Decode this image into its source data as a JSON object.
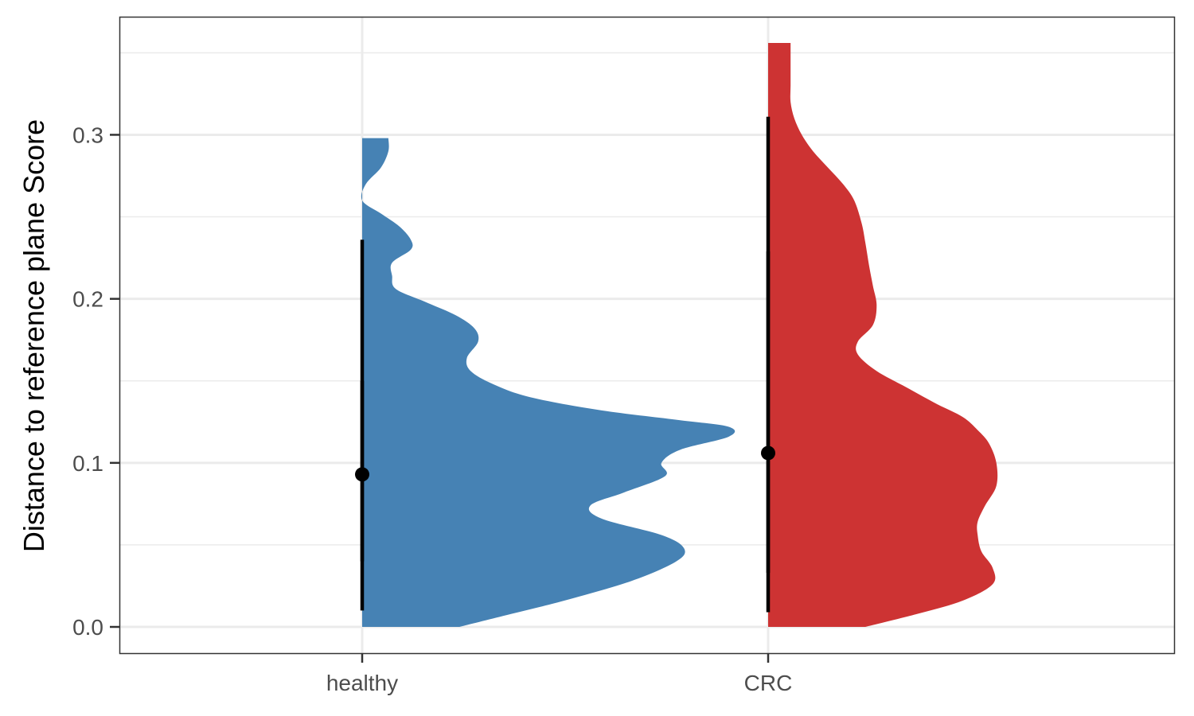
{
  "chart_data": {
    "type": "violin",
    "variant": "half-violin with point-range",
    "title": "",
    "xlabel": "",
    "ylabel": "Distance to reference plane Score",
    "ylim": [
      -0.016,
      0.372
    ],
    "yticks": [
      0.0,
      0.1,
      0.2,
      0.3
    ],
    "ytick_labels": [
      "0.0",
      "0.1",
      "0.2",
      "0.3"
    ],
    "grid": true,
    "legend": "none",
    "categories": [
      "healthy",
      "CRC"
    ],
    "series": [
      {
        "category": "healthy",
        "color": "#4682B4",
        "point": 0.093,
        "interval_outer": [
          0.01,
          0.236
        ],
        "interval_inner": [
          0.04,
          0.15
        ],
        "density": {
          "y": [
            0.0,
            0.008,
            0.016,
            0.028,
            0.04,
            0.048,
            0.056,
            0.066,
            0.074,
            0.082,
            0.092,
            0.1,
            0.108,
            0.116,
            0.122,
            0.126,
            0.132,
            0.14,
            0.148,
            0.156,
            0.164,
            0.174,
            0.182,
            0.19,
            0.198,
            0.206,
            0.214,
            0.222,
            0.23,
            0.236,
            0.244,
            0.252,
            0.26,
            0.27,
            0.28,
            0.29,
            0.298
          ],
          "width": [
            0.26,
            0.4,
            0.54,
            0.72,
            0.84,
            0.86,
            0.8,
            0.64,
            0.61,
            0.7,
            0.81,
            0.8,
            0.85,
            0.98,
            0.98,
            0.85,
            0.64,
            0.45,
            0.35,
            0.29,
            0.28,
            0.31,
            0.3,
            0.25,
            0.17,
            0.09,
            0.08,
            0.08,
            0.13,
            0.13,
            0.1,
            0.05,
            0.0,
            0.01,
            0.05,
            0.07,
            0.07
          ]
        }
      },
      {
        "category": "CRC",
        "color": "#CD3333",
        "point": 0.106,
        "interval_outer": [
          0.009,
          0.311
        ],
        "interval_inner": [
          0.033,
          0.229
        ],
        "density": {
          "y": [
            0.0,
            0.008,
            0.016,
            0.026,
            0.036,
            0.046,
            0.056,
            0.064,
            0.074,
            0.086,
            0.1,
            0.112,
            0.12,
            0.128,
            0.136,
            0.146,
            0.156,
            0.166,
            0.174,
            0.184,
            0.196,
            0.208,
            0.22,
            0.234,
            0.246,
            0.26,
            0.27,
            0.28,
            0.29,
            0.3,
            0.31,
            0.32,
            0.33,
            0.34,
            0.35,
            0.356
          ],
          "width": [
            0.26,
            0.4,
            0.52,
            0.6,
            0.6,
            0.57,
            0.56,
            0.56,
            0.58,
            0.61,
            0.61,
            0.59,
            0.56,
            0.52,
            0.45,
            0.37,
            0.29,
            0.24,
            0.24,
            0.28,
            0.29,
            0.28,
            0.27,
            0.26,
            0.25,
            0.23,
            0.2,
            0.16,
            0.12,
            0.09,
            0.07,
            0.06,
            0.06,
            0.06,
            0.06,
            0.06
          ]
        }
      }
    ]
  }
}
